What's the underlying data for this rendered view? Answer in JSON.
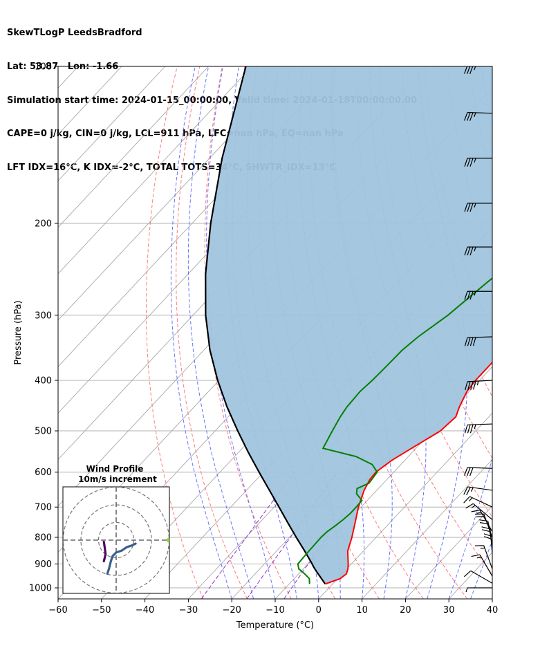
{
  "title": {
    "line1": "SkewTLogP LeedsBradford",
    "line2": "Lat: 53.87   Lon: -1.66",
    "line3": "Simulation start time: 2024-01-15_00:00:00, Valid time: 2024-01-18T00:00:00.00",
    "line4": "CAPE=0 j/kg, CIN=0 j/kg, LCL=911 hPa, LFC=nan hPa, EQ=nan hPa",
    "line5": "LFT IDX=16°C, K IDX=-2°C, TOTAL TOTS=34°C, SHWTR_IDX=13°C"
  },
  "chart_data": {
    "type": "line",
    "subtype": "skew-T log-P diagram",
    "xlabel": "Temperature (°C)",
    "ylabel": "Pressure (hPa)",
    "xlim": [
      -60,
      40
    ],
    "ylim": [
      1050,
      100
    ],
    "y_scale": "log",
    "x_ticks": [
      "−60",
      "−50",
      "−40",
      "−30",
      "−20",
      "−10",
      "0",
      "10",
      "20",
      "30",
      "40"
    ],
    "x_tick_values": [
      -60,
      -50,
      -40,
      -30,
      -20,
      -10,
      0,
      10,
      20,
      30,
      40
    ],
    "y_ticks": [
      "100",
      "200",
      "300",
      "400",
      "500",
      "600",
      "700",
      "800",
      "900",
      "1000"
    ],
    "y_tick_values": [
      100,
      200,
      300,
      400,
      500,
      600,
      700,
      800,
      900,
      1000
    ],
    "grid": true,
    "colors": {
      "temperature": "#ff0000",
      "dewpoint": "#008000",
      "parcel": "#000000",
      "cin_shade": "#a0c4de",
      "dry_adiabat": "#ff6666",
      "moist_adiabat": "#4d5bff",
      "mixing_ratio": "#9932cc",
      "isotherm": "#aaaaaa"
    },
    "series": [
      {
        "role": "temperature",
        "p": [
          983,
          960,
          940,
          920,
          900,
          850,
          800,
          750,
          700,
          650,
          620,
          600,
          570,
          540,
          500,
          470,
          450,
          420,
          400,
          380,
          350,
          300,
          270,
          250,
          220,
          200,
          180,
          160,
          140,
          120,
          100
        ],
        "t": [
          -1.7,
          0.6,
          1.0,
          0.3,
          -0.7,
          -3.6,
          -5.6,
          -8.0,
          -10.6,
          -12.9,
          -13.9,
          -14.1,
          -13.0,
          -11.0,
          -8.1,
          -7.6,
          -8.9,
          -10.5,
          -10.9,
          -10.9,
          -10.9,
          -11.7,
          -12.4,
          -12.0,
          -9.6,
          -5.9,
          -3.4,
          -1.6,
          0.6,
          3.0,
          7.3
        ]
      },
      {
        "role": "dewpoint",
        "p": [
          983,
          960,
          940,
          920,
          900,
          880,
          860,
          830,
          800,
          780,
          760,
          740,
          720,
          700,
          680,
          660,
          645,
          630,
          600,
          580,
          560,
          540,
          500,
          470,
          450,
          420,
          400,
          380,
          350,
          330,
          300,
          270,
          250,
          230,
          210,
          200,
          185,
          170,
          160,
          150,
          135,
          120,
          100
        ],
        "t": [
          -5.3,
          -6.5,
          -8.6,
          -11.0,
          -12.3,
          -12.4,
          -12.5,
          -12.6,
          -12.7,
          -12.5,
          -11.9,
          -11.4,
          -11.1,
          -11.1,
          -11.2,
          -13.9,
          -14.9,
          -13.3,
          -13.8,
          -16.6,
          -22.0,
          -31.4,
          -33.0,
          -34.2,
          -34.8,
          -35.1,
          -34.7,
          -34.5,
          -34.3,
          -33.5,
          -31.3,
          -29.9,
          -28.8,
          -28.0,
          -27.9,
          -28.1,
          -28.3,
          -28.8,
          -29.8,
          -30.1,
          -26.8,
          -23.0,
          -15.3
        ]
      },
      {
        "role": "parcel",
        "p": [
          983,
          960,
          940,
          920,
          911,
          900,
          850,
          800,
          750,
          700,
          650,
          600,
          550,
          500,
          450,
          400,
          350,
          300,
          250,
          200,
          150,
          100
        ],
        "t": [
          -1.7,
          -3.7,
          -5.5,
          -7.3,
          -8.1,
          -9.0,
          -13.5,
          -18.4,
          -23.5,
          -28.9,
          -34.7,
          -41.0,
          -47.7,
          -54.8,
          -62.4,
          -70.3,
          -78.6,
          -87.1,
          -96.0,
          -105.7,
          -117.1,
          -131.4
        ]
      }
    ],
    "wind_barbs": {
      "p": [
        100,
        123,
        150,
        183,
        222,
        270,
        330,
        400,
        485,
        590,
        650,
        700,
        740,
        780,
        800,
        830,
        860,
        890,
        920,
        950,
        980,
        1000
      ],
      "speed_kt": [
        35,
        35,
        35,
        35,
        35,
        35,
        40,
        45,
        35,
        30,
        25,
        15,
        15,
        15,
        20,
        20,
        20,
        20,
        15,
        15,
        10,
        5
      ],
      "dir_deg": [
        268,
        268,
        270,
        270,
        270,
        270,
        272,
        273,
        272,
        268,
        262,
        245,
        230,
        210,
        200,
        190,
        185,
        180,
        200,
        210,
        240,
        270
      ]
    },
    "inset": {
      "title": "Wind Profile",
      "subtitle": "10m/s increment",
      "rings_ms": [
        10,
        20,
        30
      ],
      "u": [
        -5,
        -4,
        -3,
        -2,
        0,
        3,
        6,
        9,
        11
      ],
      "v": [
        -19,
        -16,
        -12,
        -9,
        -7,
        -6,
        -4,
        -3,
        -2
      ],
      "u_low": [
        -7,
        -6,
        -6.5,
        -7
      ],
      "v_low": [
        -12,
        -8,
        -4,
        -1
      ],
      "point_u": 30,
      "point_v": 0,
      "point_color": "#8fd13c"
    }
  }
}
